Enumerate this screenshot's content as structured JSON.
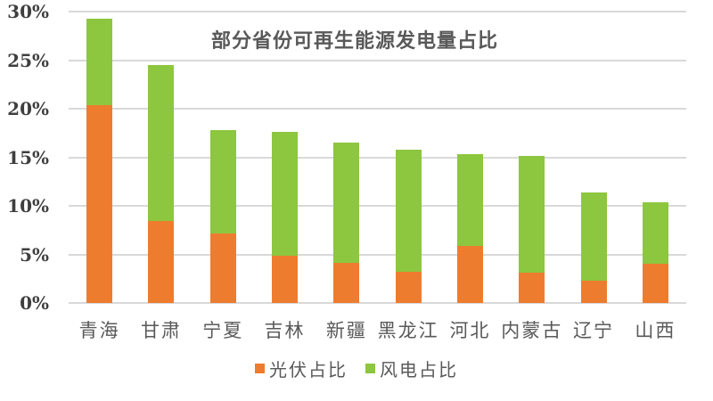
{
  "page": {
    "background": "#ffffff"
  },
  "chart_data": {
    "type": "bar",
    "stacked": true,
    "title": "部分省份可再生能源发电量占比",
    "categories": [
      "青海",
      "甘肃",
      "宁夏",
      "吉林",
      "新疆",
      "黑龙江",
      "河北",
      "内蒙古",
      "辽宁",
      "山西"
    ],
    "series": [
      {
        "name": "光伏占比",
        "color": "#EE7C2F",
        "values": [
          20.4,
          8.4,
          7.2,
          4.9,
          4.1,
          3.2,
          5.9,
          3.1,
          2.3,
          4.0
        ]
      },
      {
        "name": "风电占比",
        "color": "#8DC63F",
        "values": [
          8.9,
          16.1,
          10.6,
          12.7,
          12.4,
          12.6,
          9.4,
          12.0,
          9.1,
          6.4
        ]
      }
    ],
    "xlabel": "",
    "ylabel": "",
    "ylim": [
      0,
      30
    ],
    "ytick_step": 5,
    "ytick_labels": [
      "0%",
      "5%",
      "10%",
      "15%",
      "20%",
      "25%",
      "30%"
    ],
    "grid": true,
    "legend_position": "bottom",
    "gridline_color": "#D9D9D9",
    "title_color": "#595959",
    "ytick_color": "#3f3f3f",
    "xtick_color": "#595959",
    "legend_text_color": "#595959"
  }
}
